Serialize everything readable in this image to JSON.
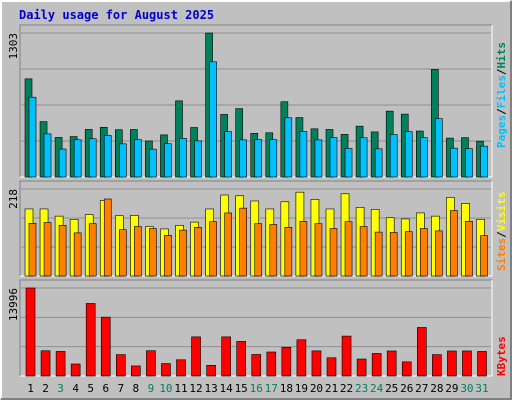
{
  "title": "Daily usage for August 2025",
  "colors": {
    "background": "#c0c0c0",
    "title": "#0000cc",
    "hits": "#00805c",
    "files": "#00c0ff",
    "visits": "#ffff00",
    "sites": "#ff8000",
    "kbytes": "#ff0000",
    "weekday_label": "#000000",
    "weekend_label": "#00805c"
  },
  "legend": {
    "top": [
      "Pages",
      "Files",
      "Hits"
    ],
    "middle": [
      "Sites",
      "Visits"
    ],
    "bottom": [
      "KBytes"
    ],
    "separator": "/"
  },
  "chart_data": [
    {
      "type": "bar",
      "name": "hits-files-pages",
      "categories": [
        "1",
        "2",
        "3",
        "4",
        "5",
        "6",
        "7",
        "8",
        "9",
        "10",
        "11",
        "12",
        "13",
        "14",
        "15",
        "16",
        "17",
        "18",
        "19",
        "20",
        "21",
        "22",
        "23",
        "24",
        "25",
        "26",
        "27",
        "28",
        "29",
        "30",
        "31"
      ],
      "ymax_label": "1303",
      "ylim": [
        0,
        1303
      ],
      "series": [
        {
          "name": "Hits",
          "values": [
            888,
            501,
            358,
            366,
            431,
            450,
            428,
            430,
            326,
            381,
            689,
            448,
            1303,
            566,
            619,
            395,
            400,
            681,
            538,
            436,
            430,
            386,
            460,
            408,
            596,
            569,
            416,
            974,
            352,
            356,
            324
          ]
        },
        {
          "name": "Files",
          "values": [
            722,
            390,
            253,
            337,
            346,
            376,
            300,
            338,
            252,
            301,
            350,
            327,
            1042,
            410,
            336,
            338,
            338,
            536,
            412,
            336,
            356,
            258,
            355,
            255,
            385,
            411,
            356,
            528,
            261,
            256,
            279
          ]
        },
        {
          "name": "Pages",
          "values": [
            60,
            55,
            45,
            50,
            55,
            50,
            45,
            50,
            40,
            45,
            55,
            50,
            65,
            55,
            50,
            45,
            50,
            55,
            55,
            50,
            45,
            40,
            50,
            45,
            55,
            50,
            45,
            60,
            45,
            40,
            45
          ]
        }
      ]
    },
    {
      "type": "bar",
      "name": "visits-sites",
      "categories": [
        "1",
        "2",
        "3",
        "4",
        "5",
        "6",
        "7",
        "8",
        "9",
        "10",
        "11",
        "12",
        "13",
        "14",
        "15",
        "16",
        "17",
        "18",
        "19",
        "20",
        "21",
        "22",
        "23",
        "24",
        "25",
        "26",
        "27",
        "28",
        "29",
        "30",
        "31"
      ],
      "ymax_label": "218",
      "ylim": [
        0,
        218
      ],
      "series": [
        {
          "name": "Visits",
          "values": [
            168,
            168,
            150,
            142,
            154,
            189,
            151,
            152,
            124,
            118,
            127,
            135,
            168,
            203,
            201,
            188,
            168,
            186,
            210,
            192,
            168,
            206,
            172,
            167,
            146,
            143,
            158,
            150,
            197,
            182,
            142
          ]
        },
        {
          "name": "Sites",
          "values": [
            132,
            134,
            127,
            108,
            131,
            193,
            116,
            124,
            119,
            102,
            115,
            122,
            136,
            158,
            170,
            131,
            129,
            122,
            137,
            131,
            119,
            136,
            124,
            110,
            109,
            111,
            119,
            113,
            164,
            137,
            101
          ]
        }
      ]
    },
    {
      "type": "bar",
      "name": "kbytes",
      "categories": [
        "1",
        "2",
        "3",
        "4",
        "5",
        "6",
        "7",
        "8",
        "9",
        "10",
        "11",
        "12",
        "13",
        "14",
        "15",
        "16",
        "17",
        "18",
        "19",
        "20",
        "21",
        "22",
        "23",
        "24",
        "25",
        "26",
        "27",
        "28",
        "29",
        "30",
        "31"
      ],
      "ymax_label": "13996",
      "ylim": [
        0,
        13996
      ],
      "series": [
        {
          "name": "KBytes",
          "values": [
            13996,
            4017,
            3910,
            1909,
            11540,
            9362,
            3401,
            1600,
            4017,
            1983,
            2580,
            6223,
            1700,
            6223,
            5500,
            3421,
            3817,
            4571,
            5767,
            3995,
            2897,
            6349,
            2700,
            3586,
            3980,
            2249,
            7721,
            3402,
            3977,
            3985,
            3908
          ]
        }
      ]
    }
  ],
  "days": [
    {
      "label": "1",
      "weekend": false
    },
    {
      "label": "2",
      "weekend": false
    },
    {
      "label": "3",
      "weekend": true
    },
    {
      "label": "4",
      "weekend": false
    },
    {
      "label": "5",
      "weekend": false
    },
    {
      "label": "6",
      "weekend": false
    },
    {
      "label": "7",
      "weekend": false
    },
    {
      "label": "8",
      "weekend": false
    },
    {
      "label": "9",
      "weekend": true
    },
    {
      "label": "10",
      "weekend": true
    },
    {
      "label": "11",
      "weekend": false
    },
    {
      "label": "12",
      "weekend": false
    },
    {
      "label": "13",
      "weekend": false
    },
    {
      "label": "14",
      "weekend": false
    },
    {
      "label": "15",
      "weekend": false
    },
    {
      "label": "16",
      "weekend": true
    },
    {
      "label": "17",
      "weekend": true
    },
    {
      "label": "18",
      "weekend": false
    },
    {
      "label": "19",
      "weekend": false
    },
    {
      "label": "20",
      "weekend": false
    },
    {
      "label": "21",
      "weekend": false
    },
    {
      "label": "22",
      "weekend": false
    },
    {
      "label": "23",
      "weekend": true
    },
    {
      "label": "24",
      "weekend": true
    },
    {
      "label": "25",
      "weekend": false
    },
    {
      "label": "26",
      "weekend": false
    },
    {
      "label": "27",
      "weekend": false
    },
    {
      "label": "28",
      "weekend": false
    },
    {
      "label": "29",
      "weekend": false
    },
    {
      "label": "30",
      "weekend": true
    },
    {
      "label": "31",
      "weekend": true
    }
  ]
}
